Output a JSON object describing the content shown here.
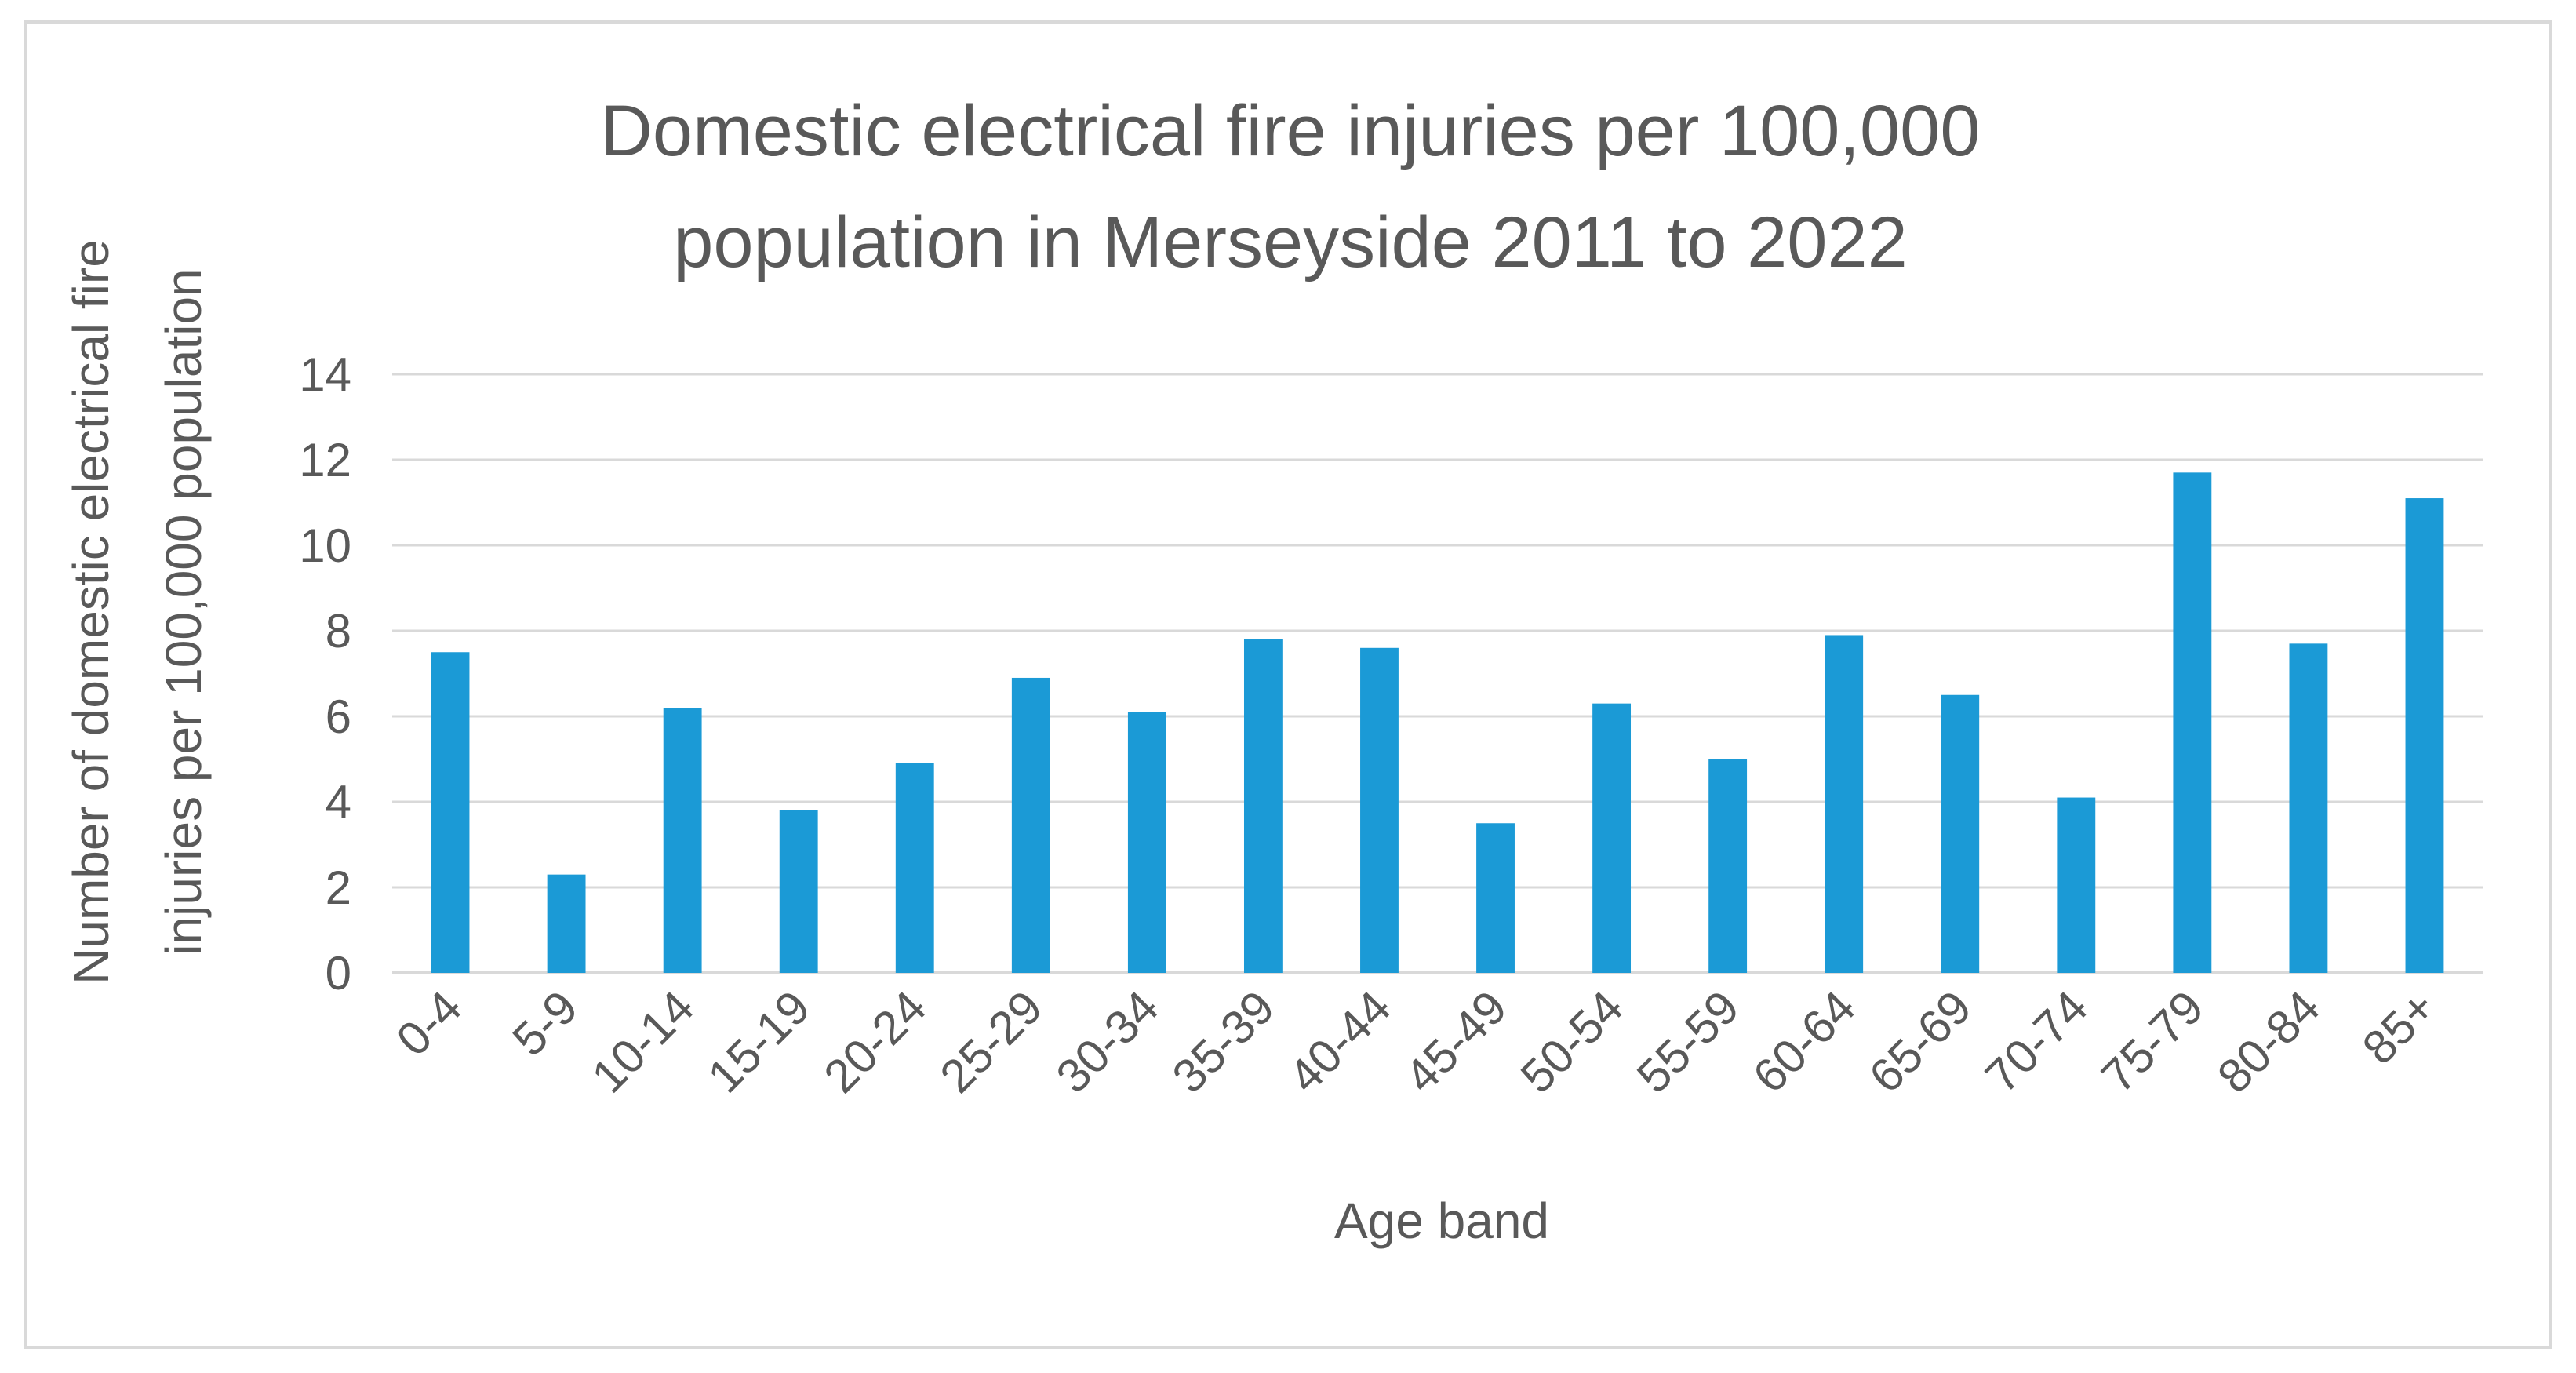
{
  "chart_data": {
    "type": "bar",
    "title_lines": [
      "Domestic electrical fire injuries per 100,000",
      "population in Merseyside 2011 to 2022"
    ],
    "xlabel": "Age band",
    "ylabel_lines": [
      "Number of domestic electrical fire",
      "injuries per 100,000 population"
    ],
    "categories": [
      "0-4",
      "5-9",
      "10-14",
      "15-19",
      "20-24",
      "25-29",
      "30-34",
      "35-39",
      "40-44",
      "45-49",
      "50-54",
      "55-59",
      "60-64",
      "65-69",
      "70-74",
      "75-79",
      "80-84",
      "85+"
    ],
    "values": [
      7.5,
      2.3,
      6.2,
      3.8,
      4.9,
      6.9,
      6.1,
      7.8,
      7.6,
      3.5,
      6.3,
      5.0,
      7.9,
      6.5,
      4.1,
      11.7,
      7.7,
      11.1
    ],
    "ylim": [
      0,
      14
    ],
    "yticks": [
      "0",
      "2",
      "4",
      "6",
      "8",
      "10",
      "12",
      "14"
    ],
    "grid": true,
    "legend": "none",
    "colors": {
      "bar": "#1b9ad6",
      "grid": "#d9d9d9",
      "text": "#595959"
    }
  }
}
